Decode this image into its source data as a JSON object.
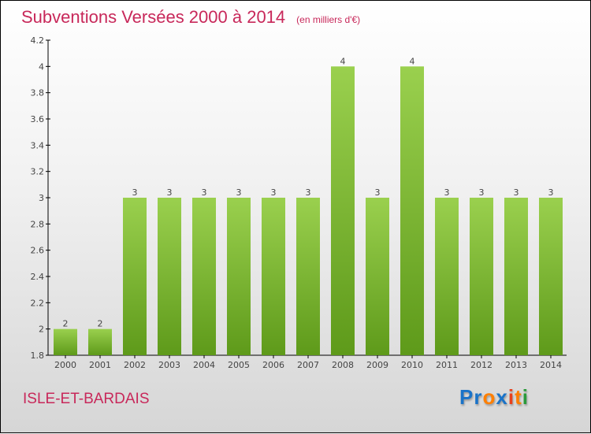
{
  "chart_data": {
    "type": "bar",
    "title": "Subventions Versées 2000 à 2014",
    "unit": "(en milliers d'€)",
    "categories": [
      "2000",
      "2001",
      "2002",
      "2003",
      "2004",
      "2005",
      "2006",
      "2007",
      "2008",
      "2009",
      "2010",
      "2011",
      "2012",
      "2013",
      "2014"
    ],
    "values": [
      2,
      2,
      3,
      3,
      3,
      3,
      3,
      3,
      4,
      3,
      4,
      3,
      3,
      3,
      3
    ],
    "data_labels": [
      "2",
      "2",
      "3",
      "3",
      "3",
      "3",
      "3",
      "3",
      "4",
      "3",
      "4",
      "3",
      "3",
      "3",
      "3"
    ],
    "yticks": [
      "1.8",
      "2",
      "2.2",
      "2.4",
      "2.6",
      "2.8",
      "3",
      "3.2",
      "3.4",
      "3.6",
      "3.8",
      "4",
      "4.2"
    ],
    "ylim": [
      1.8,
      4.2
    ],
    "xlabel": "",
    "ylabel": "",
    "bar_color_top": "#9ad04e",
    "bar_color_bottom": "#5e9a1a"
  },
  "commune": "ISLE-ET-BARDAIS",
  "logo": {
    "letters": [
      "P",
      "r",
      "o",
      "x",
      "i",
      "t",
      "i"
    ],
    "colors": [
      "#1a73c8",
      "#1a73c8",
      "#ff7f00",
      "#1a73c8",
      "#e8401c",
      "#ff7f00",
      "#2a9a3a"
    ]
  }
}
